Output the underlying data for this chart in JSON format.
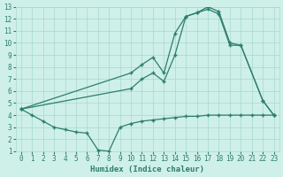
{
  "bg_color": "#cef0e8",
  "line_color": "#2e7d6e",
  "grid_color": "#a8d8ce",
  "xlabel": "Humidex (Indice chaleur)",
  "xlim": [
    -0.5,
    23.5
  ],
  "ylim": [
    1,
    13
  ],
  "xticks": [
    0,
    1,
    2,
    3,
    4,
    5,
    6,
    7,
    8,
    9,
    10,
    11,
    12,
    13,
    14,
    15,
    16,
    17,
    18,
    19,
    20,
    21,
    22,
    23
  ],
  "yticks": [
    1,
    2,
    3,
    4,
    5,
    6,
    7,
    8,
    9,
    10,
    11,
    12,
    13
  ],
  "curve1_x": [
    0,
    1,
    2,
    3,
    4,
    5,
    6,
    7,
    8,
    9,
    10,
    11,
    12,
    13,
    14,
    15,
    16,
    17,
    18,
    19,
    20,
    21,
    22,
    23
  ],
  "curve1_y": [
    4.5,
    4.0,
    3.5,
    3.0,
    2.8,
    2.6,
    2.5,
    1.1,
    1.0,
    3.0,
    3.3,
    3.5,
    3.6,
    3.7,
    3.8,
    3.9,
    3.9,
    4.0,
    4.0,
    4.0,
    4.0,
    4.0,
    4.0,
    4.0
  ],
  "curve2_x": [
    0,
    10,
    11,
    12,
    13,
    14,
    15,
    16,
    17,
    18,
    19,
    20,
    22,
    23
  ],
  "curve2_y": [
    4.5,
    7.5,
    8.2,
    8.8,
    7.5,
    10.8,
    12.2,
    12.5,
    13.0,
    12.6,
    10.0,
    9.8,
    5.2,
    4.0
  ],
  "curve3_x": [
    0,
    10,
    11,
    12,
    13,
    14,
    15,
    16,
    17,
    18,
    19,
    20,
    22,
    23
  ],
  "curve3_y": [
    4.5,
    6.2,
    7.0,
    7.5,
    6.8,
    9.0,
    12.2,
    12.5,
    12.8,
    12.4,
    9.8,
    9.8,
    5.2,
    4.0
  ]
}
